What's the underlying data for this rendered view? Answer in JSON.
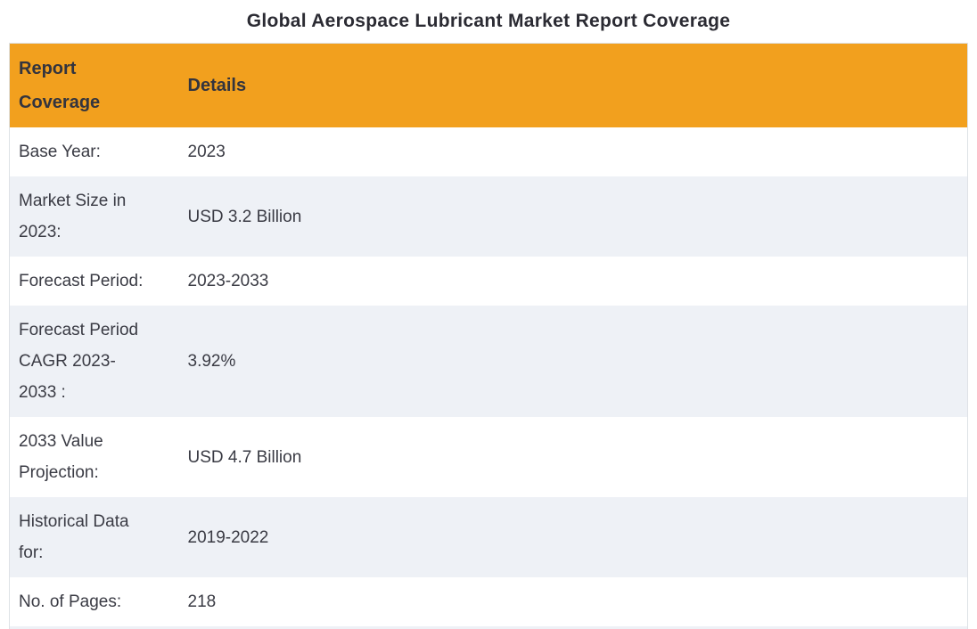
{
  "page_title": "Global Aerospace Lubricant Market Report Coverage",
  "table": {
    "columns": {
      "label": "Report Coverage",
      "value": "Details"
    },
    "rows": [
      {
        "label": "Base Year:",
        "value": "2023"
      },
      {
        "label": "Market Size in 2023:",
        "value": "USD 3.2 Billion"
      },
      {
        "label": "Forecast Period:",
        "value": "2023-2033"
      },
      {
        "label": "Forecast Period CAGR 2023-2033 :",
        "value": "3.92%"
      },
      {
        "label": "2033 Value Projection:",
        "value": "USD 4.7 Billion"
      },
      {
        "label": "Historical Data for:",
        "value": "2019-2022"
      },
      {
        "label": "No. of Pages:",
        "value": "218"
      }
    ]
  },
  "colors": {
    "header_bg": "#F2A01E",
    "row_alt_bg": "#EEF1F6",
    "border": "#DEE2E6",
    "title_text": "#2B2B33",
    "body_text": "#3A3B44"
  },
  "chart_data": {
    "type": "table",
    "title": "Global Aerospace Lubricant Market Report Coverage",
    "columns": [
      "Report Coverage",
      "Details"
    ],
    "rows": [
      [
        "Base Year:",
        "2023"
      ],
      [
        "Market Size in 2023:",
        "USD 3.2 Billion"
      ],
      [
        "Forecast Period:",
        "2023-2033"
      ],
      [
        "Forecast Period CAGR 2023-2033 :",
        "3.92%"
      ],
      [
        "2033 Value Projection:",
        "USD 4.7 Billion"
      ],
      [
        "Historical Data for:",
        "2019-2022"
      ],
      [
        "No. of Pages:",
        "218"
      ]
    ]
  }
}
